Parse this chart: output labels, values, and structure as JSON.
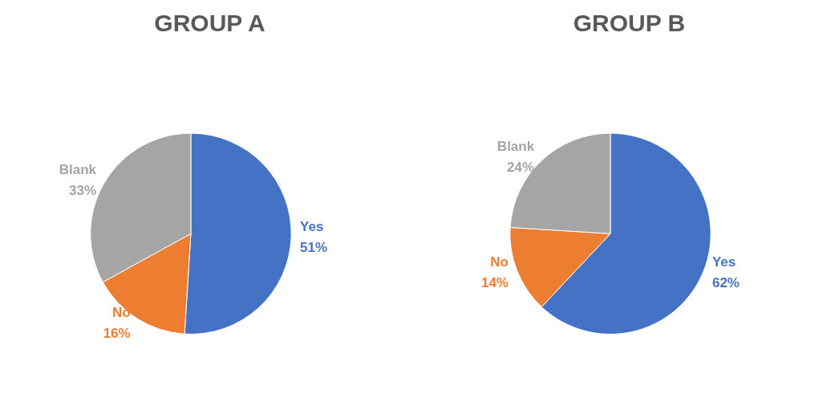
{
  "chart_data": [
    {
      "type": "pie",
      "title": "GROUP A",
      "categories": [
        "Yes",
        "No",
        "Blank"
      ],
      "values": [
        51,
        16,
        33
      ],
      "colors": [
        "#4472c4",
        "#ed7d31",
        "#a5a5a5"
      ],
      "value_labels": [
        "51%",
        "16%",
        "33%"
      ],
      "legend": false
    },
    {
      "type": "pie",
      "title": "GROUP B",
      "categories": [
        "Yes",
        "No",
        "Blank"
      ],
      "values": [
        62,
        14,
        24
      ],
      "colors": [
        "#4472c4",
        "#ed7d31",
        "#a5a5a5"
      ],
      "value_labels": [
        "62%",
        "14%",
        "24%"
      ],
      "legend": false
    }
  ]
}
